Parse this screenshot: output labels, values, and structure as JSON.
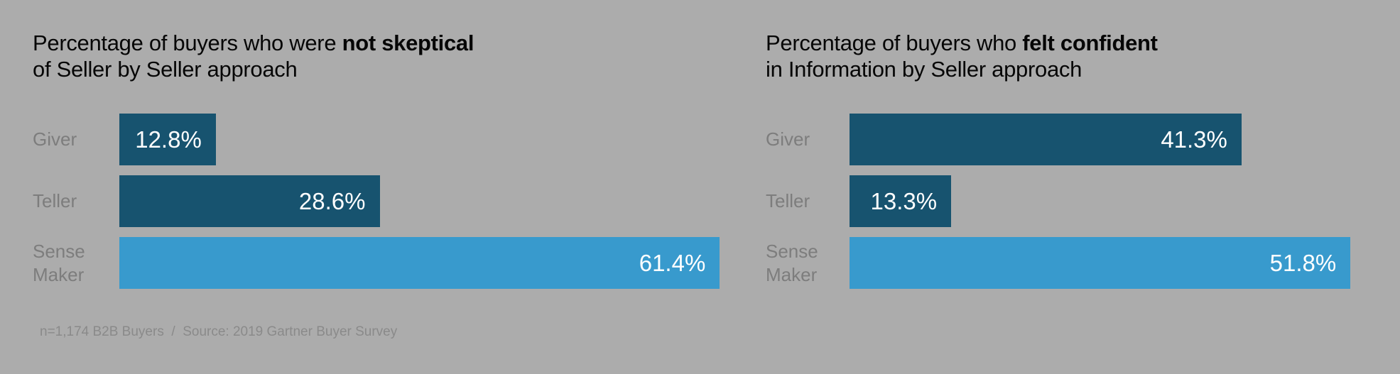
{
  "page": {
    "background_color": "#ACACAC"
  },
  "colors": {
    "bar_dark_teal": "#17536F",
    "bar_light_blue": "#389ACD",
    "category_label_gray": "#7D7D7D",
    "footnote_gray": "#8A8A8A",
    "value_text_white": "#FFFFFF",
    "title_black": "#060606"
  },
  "footnote": "n=1,174 B2B Buyers  /  Source: 2019 Gartner Buyer Survey",
  "chart_data": [
    {
      "type": "bar",
      "orientation": "horizontal",
      "title": "Percentage of buyers who were not skeptical of Seller by Seller approach",
      "title_line1_regular": "Percentage of buyers who were ",
      "title_line1_bold": "not skeptical",
      "title_line2": "of Seller by Seller approach",
      "categories": [
        "Giver",
        "Teller",
        "Sense Maker"
      ],
      "values": [
        12.8,
        28.6,
        61.4
      ],
      "value_labels": [
        "12.8%",
        "28.6%",
        "61.4%"
      ],
      "bar_colors": [
        "#17536F",
        "#17536F",
        "#389ACD"
      ],
      "xlim": [
        0,
        65
      ],
      "grid": false,
      "legend": "none",
      "value_label_position": "inside-end"
    },
    {
      "type": "bar",
      "orientation": "horizontal",
      "title": "Percentage of buyers who felt confident in Information by Seller approach",
      "title_line1_regular": "Percentage of buyers who ",
      "title_line1_bold": "felt confident",
      "title_line2": "in Information by Seller approach",
      "categories": [
        "Giver",
        "Teller",
        "Sense Maker"
      ],
      "values": [
        41.3,
        13.3,
        51.8
      ],
      "value_labels": [
        "41.3%",
        "13.3%",
        "51.8%"
      ],
      "bar_colors": [
        "#17536F",
        "#17536F",
        "#389ACD"
      ],
      "xlim": [
        0,
        65
      ],
      "grid": false,
      "legend": "none",
      "value_label_position": "inside-end"
    }
  ]
}
